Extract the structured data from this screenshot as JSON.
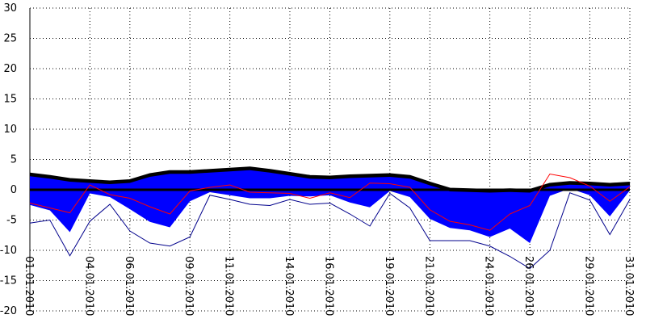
{
  "chart_data": {
    "type": "area",
    "title": "",
    "xlabel": "",
    "ylabel": "",
    "ylim": [
      -20,
      30
    ],
    "yticks": [
      30,
      25,
      20,
      15,
      10,
      5,
      0,
      -5,
      -10,
      -15,
      -20
    ],
    "xlim": [
      "01.01.2010",
      "31.01.2010"
    ],
    "xticks": [
      "01.01.2010",
      "04.01.2010",
      "06.01.2010",
      "09.01.2010",
      "11.01.2010",
      "14.01.2010",
      "16.01.2010",
      "19.01.2010",
      "21.01.2010",
      "24.01.2010",
      "26.01.2010",
      "29.01.2010",
      "31.01.2010"
    ],
    "grid": true,
    "colors": {
      "band_fill": "#0000ff",
      "upper_edge": "#000000",
      "red_line": "#ff0000",
      "navy_line": "#00008b",
      "zero_line": "#000000",
      "grid": "#000000"
    },
    "series": [
      {
        "role": "band-upper",
        "x": [
          "01.01.2010",
          "02.01.2010",
          "03.01.2010",
          "04.01.2010",
          "05.01.2010",
          "06.01.2010",
          "07.01.2010",
          "08.01.2010",
          "09.01.2010",
          "10.01.2010",
          "11.01.2010",
          "12.01.2010",
          "13.01.2010",
          "14.01.2010",
          "15.01.2010",
          "16.01.2010",
          "17.01.2010",
          "18.01.2010",
          "19.01.2010",
          "20.01.2010",
          "21.01.2010",
          "22.01.2010",
          "23.01.2010",
          "24.01.2010",
          "25.01.2010",
          "26.01.2010",
          "27.01.2010",
          "28.01.2010",
          "29.01.2010",
          "30.01.2010",
          "31.01.2010"
        ],
        "values": [
          2.5,
          2.1,
          1.6,
          1.4,
          1.2,
          1.4,
          2.4,
          2.9,
          2.9,
          3.1,
          3.3,
          3.5,
          3.1,
          2.6,
          2.1,
          2.0,
          2.2,
          2.3,
          2.4,
          2.1,
          1.0,
          0.0,
          -0.1,
          -0.2,
          -0.1,
          -0.2,
          0.8,
          1.1,
          1.0,
          0.8,
          1.0
        ]
      },
      {
        "role": "band-lower",
        "x": [
          "01.01.2010",
          "02.01.2010",
          "03.01.2010",
          "04.01.2010",
          "05.01.2010",
          "06.01.2010",
          "07.01.2010",
          "08.01.2010",
          "09.01.2010",
          "10.01.2010",
          "11.01.2010",
          "12.01.2010",
          "13.01.2010",
          "14.01.2010",
          "15.01.2010",
          "16.01.2010",
          "17.01.2010",
          "18.01.2010",
          "19.01.2010",
          "20.01.2010",
          "21.01.2010",
          "22.01.2010",
          "23.01.2010",
          "24.01.2010",
          "25.01.2010",
          "26.01.2010",
          "27.01.2010",
          "28.01.2010",
          "29.01.2010",
          "30.01.2010",
          "31.01.2010"
        ],
        "values": [
          -2.5,
          -3.4,
          -7.0,
          -0.6,
          -1.2,
          -3.2,
          -5.3,
          -6.2,
          -1.9,
          -0.4,
          -0.9,
          -1.4,
          -1.4,
          -1.0,
          -1.1,
          -0.9,
          -2.1,
          -2.9,
          -0.2,
          -1.2,
          -4.8,
          -6.3,
          -6.7,
          -7.8,
          -6.4,
          -8.8,
          -1.0,
          0.2,
          -0.9,
          -4.4,
          -0.1
        ]
      },
      {
        "role": "red-line",
        "x": [
          "01.01.2010",
          "02.01.2010",
          "03.01.2010",
          "04.01.2010",
          "05.01.2010",
          "06.01.2010",
          "07.01.2010",
          "08.01.2010",
          "09.01.2010",
          "10.01.2010",
          "11.01.2010",
          "12.01.2010",
          "13.01.2010",
          "14.01.2010",
          "15.01.2010",
          "16.01.2010",
          "17.01.2010",
          "18.01.2010",
          "19.01.2010",
          "20.01.2010",
          "21.01.2010",
          "22.01.2010",
          "23.01.2010",
          "24.01.2010",
          "25.01.2010",
          "26.01.2010",
          "27.01.2010",
          "28.01.2010",
          "29.01.2010",
          "30.01.2010",
          "31.01.2010"
        ],
        "values": [
          -2.2,
          -3.0,
          -3.8,
          0.8,
          -0.8,
          -1.4,
          -2.8,
          -4.0,
          -0.2,
          0.4,
          0.8,
          -0.4,
          -0.5,
          -0.6,
          -1.4,
          -0.5,
          -1.3,
          1.1,
          1.0,
          0.4,
          -3.3,
          -5.2,
          -5.8,
          -6.7,
          -4.0,
          -2.6,
          2.6,
          2.0,
          0.6,
          -1.9,
          0.5
        ]
      },
      {
        "role": "navy-line",
        "x": [
          "01.01.2010",
          "02.01.2010",
          "03.01.2010",
          "04.01.2010",
          "05.01.2010",
          "06.01.2010",
          "07.01.2010",
          "08.01.2010",
          "09.01.2010",
          "10.01.2010",
          "11.01.2010",
          "12.01.2010",
          "13.01.2010",
          "14.01.2010",
          "15.01.2010",
          "16.01.2010",
          "17.01.2010",
          "18.01.2010",
          "19.01.2010",
          "20.01.2010",
          "21.01.2010",
          "22.01.2010",
          "23.01.2010",
          "24.01.2010",
          "25.01.2010",
          "26.01.2010",
          "27.01.2010",
          "28.01.2010",
          "29.01.2010",
          "30.01.2010",
          "31.01.2010"
        ],
        "values": [
          -5.5,
          -5.0,
          -10.9,
          -5.2,
          -2.4,
          -6.8,
          -8.8,
          -9.3,
          -7.8,
          -0.9,
          -1.6,
          -2.4,
          -2.6,
          -1.6,
          -2.4,
          -2.2,
          -4.0,
          -6.0,
          -0.6,
          -3.0,
          -8.4,
          -8.4,
          -8.4,
          -9.3,
          -11.0,
          -13.0,
          -10.0,
          -0.5,
          -1.7,
          -7.4,
          -1.6
        ]
      }
    ]
  }
}
